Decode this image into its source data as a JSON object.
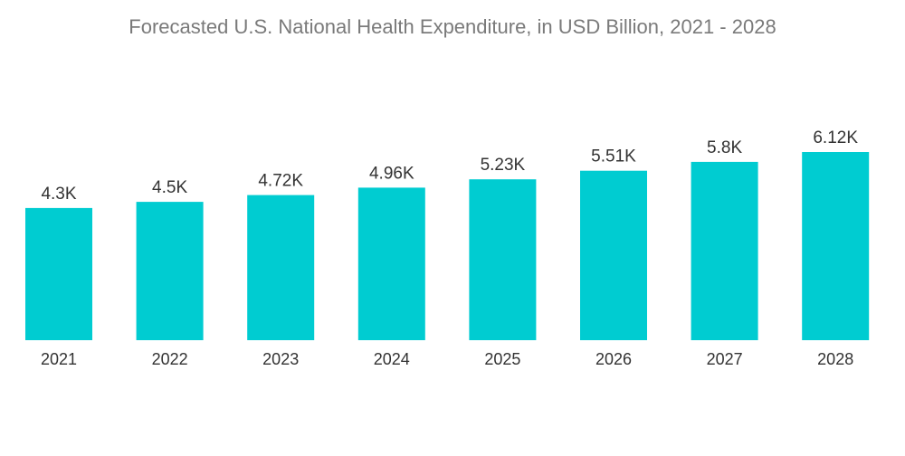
{
  "title": "Forecasted U.S. National Health Expenditure, in USD Billion, 2021 - 2028",
  "colors": {
    "bar": "#00ccd1",
    "title_text": "#7a7a7a",
    "label_text": "#333333"
  },
  "chart_data": {
    "type": "bar",
    "title": "Forecasted U.S. National Health Expenditure, in USD Billion, 2021 - 2028",
    "categories": [
      "2021",
      "2022",
      "2023",
      "2024",
      "2025",
      "2026",
      "2027",
      "2028"
    ],
    "values": [
      4300,
      4500,
      4720,
      4960,
      5230,
      5510,
      5800,
      6120
    ],
    "data_labels": [
      "4.3K",
      "4.5K",
      "4.72K",
      "4.96K",
      "5.23K",
      "5.51K",
      "5.8K",
      "6.12K"
    ],
    "xlabel": "",
    "ylabel": "",
    "ylim": [
      0,
      6120
    ],
    "grid": false,
    "legend": "none"
  }
}
